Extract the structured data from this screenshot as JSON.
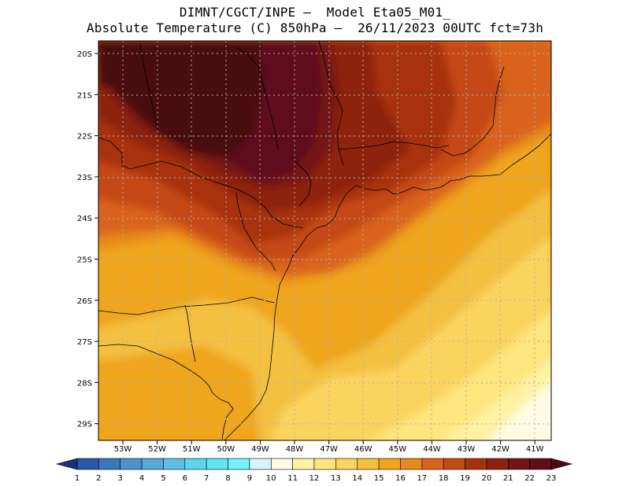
{
  "header": {
    "line1": "DIMNT/CGCT/INPE —  Model Eta05_M01_",
    "line2": "Absolute Temperature (C) 850hPa —  26/11/2023 00UTC fct=73h"
  },
  "map": {
    "lon_labels": [
      "53W",
      "52W",
      "51W",
      "50W",
      "49W",
      "48W",
      "47W",
      "46W",
      "45W",
      "44W",
      "43W",
      "42W",
      "41W"
    ],
    "lat_labels": [
      "20S",
      "21S",
      "22S",
      "23S",
      "24S",
      "25S",
      "26S",
      "27S",
      "28S",
      "29S"
    ],
    "legend_labels": [
      "1",
      "2",
      "3",
      "4",
      "5",
      "6",
      "7",
      "8",
      "9",
      "10",
      "11",
      "12",
      "13",
      "14",
      "15",
      "16",
      "17",
      "18",
      "19",
      "20",
      "21",
      "22",
      "23"
    ],
    "legend_colors": [
      "#1f3d8f",
      "#2a58a8",
      "#3a78bd",
      "#4b93cc",
      "#56a9d8",
      "#5cc0e4",
      "#5dd5ec",
      "#5fe6f2",
      "#6ff5fb",
      "#d6f5fb",
      "#fffae3",
      "#fff2a3",
      "#ffe57e",
      "#fbd45e",
      "#f4c040",
      "#efa51c",
      "#e8891a",
      "#d9631a",
      "#c44a14",
      "#a8320e",
      "#8d210d",
      "#741414",
      "#5f0c1b"
    ],
    "underflow_color": "#1c2f7a",
    "overflow_color": "#4a0b10"
  }
}
